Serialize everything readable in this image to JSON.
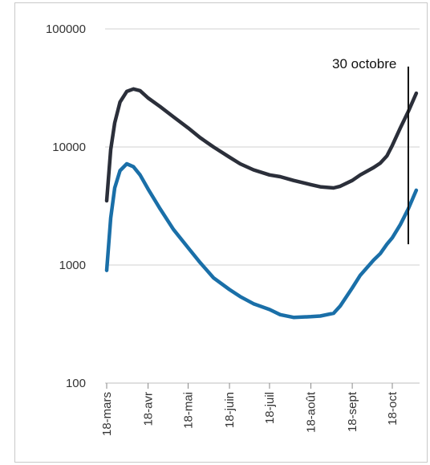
{
  "chart_data": {
    "type": "line",
    "title": "",
    "xlabel": "",
    "ylabel": "",
    "yscale": "log",
    "ylim": [
      100,
      100000
    ],
    "yticks": [
      {
        "value": 100,
        "label": "100"
      },
      {
        "value": 1000,
        "label": "1000"
      },
      {
        "value": 10000,
        "label": "10000"
      },
      {
        "value": 100000,
        "label": "100000"
      }
    ],
    "xlim": [
      0,
      232
    ],
    "xticks": [
      {
        "value": 0,
        "label": "18-mars"
      },
      {
        "value": 31,
        "label": "18-avr"
      },
      {
        "value": 61,
        "label": "18-mai"
      },
      {
        "value": 92,
        "label": "18-juin"
      },
      {
        "value": 122,
        "label": "18-juil"
      },
      {
        "value": 153,
        "label": "18-août"
      },
      {
        "value": 184,
        "label": "18-sept"
      },
      {
        "value": 214,
        "label": "18-oct"
      }
    ],
    "grid": "horizontal",
    "legend": "none",
    "annotation": {
      "label": "30 octobre",
      "x": 226,
      "y_bottom": 1500,
      "y_top": 48000
    },
    "series": [
      {
        "color": "#2b2f3a",
        "x": [
          0,
          3,
          6,
          10,
          15,
          20,
          25,
          31,
          40,
          50,
          61,
          70,
          80,
          92,
          100,
          110,
          122,
          130,
          140,
          153,
          160,
          170,
          175,
          184,
          190,
          200,
          205,
          210,
          214,
          220,
          226,
          232
        ],
        "y": [
          3500,
          9500,
          16000,
          24000,
          29500,
          31000,
          30000,
          26000,
          22000,
          18000,
          14500,
          12000,
          10000,
          8200,
          7200,
          6400,
          5800,
          5600,
          5200,
          4800,
          4600,
          4500,
          4650,
          5200,
          5800,
          6700,
          7300,
          8400,
          10300,
          14500,
          20000,
          28500
        ]
      },
      {
        "color": "#1a6fa8",
        "x": [
          0,
          3,
          6,
          10,
          15,
          20,
          25,
          31,
          40,
          50,
          61,
          70,
          80,
          92,
          100,
          110,
          122,
          130,
          140,
          153,
          160,
          170,
          175,
          184,
          190,
          200,
          205,
          210,
          214,
          220,
          226,
          232
        ],
        "y": [
          900,
          2500,
          4500,
          6300,
          7200,
          6800,
          5800,
          4400,
          3000,
          2000,
          1400,
          1050,
          780,
          620,
          540,
          470,
          420,
          380,
          360,
          365,
          370,
          390,
          450,
          640,
          820,
          1100,
          1250,
          1500,
          1700,
          2200,
          3000,
          4300
        ]
      }
    ]
  }
}
